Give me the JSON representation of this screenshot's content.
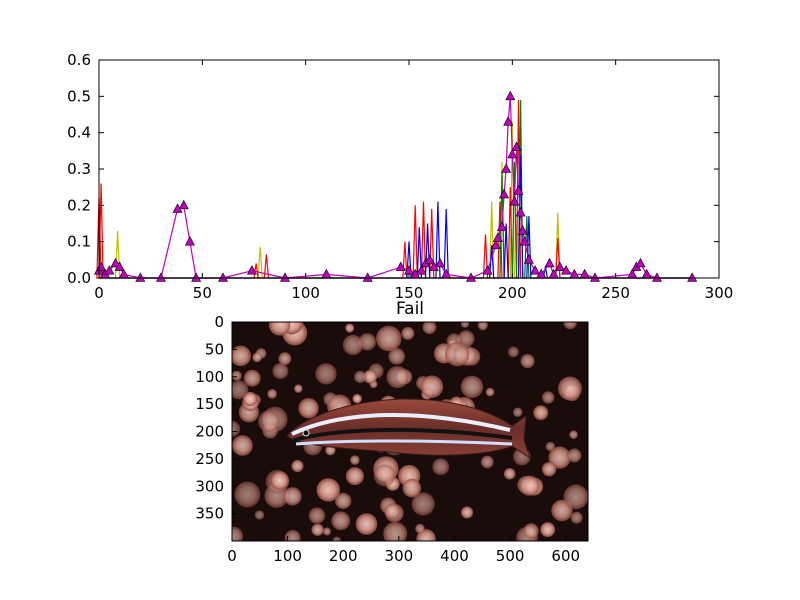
{
  "chart_data": [
    {
      "type": "line",
      "title": "",
      "xlabel": "",
      "ylabel": "",
      "xlim": [
        0,
        300
      ],
      "ylim": [
        0,
        0.6
      ],
      "xticks": [
        "0",
        "50",
        "100",
        "150",
        "200",
        "250",
        "300"
      ],
      "yticks": [
        "0.0",
        "0.1",
        "0.2",
        "0.3",
        "0.4",
        "0.5",
        "0.6"
      ],
      "grid": false,
      "legend": "none",
      "series": [
        {
          "color": "#bfbf00",
          "marker": "none",
          "peaks": [
            [
              9,
              0.13
            ],
            [
              78,
              0.085
            ],
            [
              190,
              0.21
            ],
            [
              195,
              0.32
            ],
            [
              200,
              0.43
            ],
            [
              222,
              0.18
            ]
          ]
        },
        {
          "color": "#ff0000",
          "marker": "none",
          "peaks": [
            [
              0,
              0.22
            ],
            [
              1,
              0.26
            ],
            [
              76,
              0.04
            ],
            [
              81,
              0.065
            ],
            [
              148,
              0.1
            ],
            [
              153,
              0.2
            ],
            [
              157,
              0.21
            ],
            [
              161,
              0.19
            ],
            [
              187,
              0.12
            ],
            [
              194,
              0.21
            ],
            [
              199,
              0.25
            ],
            [
              203,
              0.49
            ],
            [
              222,
              0.11
            ]
          ]
        },
        {
          "color": "#008000",
          "marker": "none",
          "peaks": [
            [
              195,
              0.29
            ],
            [
              201,
              0.32
            ],
            [
              204,
              0.49
            ],
            [
              207,
              0.17
            ]
          ]
        },
        {
          "color": "#0000ff",
          "marker": "none",
          "peaks": [
            [
              150,
              0.1
            ],
            [
              155,
              0.14
            ],
            [
              159,
              0.15
            ],
            [
              164,
              0.21
            ],
            [
              168,
              0.19
            ],
            [
              190,
              0.09
            ],
            [
              197,
              0.15
            ],
            [
              204,
              0.34
            ],
            [
              208,
              0.17
            ],
            [
              216,
              0.03
            ]
          ]
        },
        {
          "color": "#bf00bf",
          "marker": "triangle",
          "points": [
            [
              0,
              0.02
            ],
            [
              1,
              0.03
            ],
            [
              3,
              0.01
            ],
            [
              5,
              0.02
            ],
            [
              8,
              0.04
            ],
            [
              10,
              0.03
            ],
            [
              12,
              0.01
            ],
            [
              20,
              0.0
            ],
            [
              30,
              0.0
            ],
            [
              38,
              0.19
            ],
            [
              41,
              0.2
            ],
            [
              44,
              0.1
            ],
            [
              47,
              0.0
            ],
            [
              60,
              0.0
            ],
            [
              74,
              0.02
            ],
            [
              90,
              0.0
            ],
            [
              110,
              0.01
            ],
            [
              130,
              0.0
            ],
            [
              146,
              0.03
            ],
            [
              150,
              0.02
            ],
            [
              153,
              0.01
            ],
            [
              156,
              0.02
            ],
            [
              158,
              0.04
            ],
            [
              160,
              0.05
            ],
            [
              162,
              0.03
            ],
            [
              165,
              0.04
            ],
            [
              168,
              0.01
            ],
            [
              180,
              0.0
            ],
            [
              188,
              0.02
            ],
            [
              192,
              0.09
            ],
            [
              193,
              0.11
            ],
            [
              195,
              0.14
            ],
            [
              196,
              0.23
            ],
            [
              197,
              0.3
            ],
            [
              198,
              0.43
            ],
            [
              199,
              0.5
            ],
            [
              200,
              0.34
            ],
            [
              201,
              0.21
            ],
            [
              202,
              0.36
            ],
            [
              203,
              0.24
            ],
            [
              204,
              0.18
            ],
            [
              205,
              0.13
            ],
            [
              206,
              0.1
            ],
            [
              208,
              0.05
            ],
            [
              211,
              0.02
            ],
            [
              214,
              0.01
            ],
            [
              218,
              0.04
            ],
            [
              220,
              0.01
            ],
            [
              223,
              0.03
            ],
            [
              226,
              0.02
            ],
            [
              230,
              0.01
            ],
            [
              235,
              0.01
            ],
            [
              240,
              0.0
            ],
            [
              258,
              0.01
            ],
            [
              260,
              0.03
            ],
            [
              262,
              0.04
            ],
            [
              265,
              0.01
            ],
            [
              270,
              0.0
            ],
            [
              287,
              0.0
            ]
          ]
        }
      ]
    },
    {
      "type": "image",
      "title": "Fail",
      "xlim": [
        0,
        640
      ],
      "ylim": [
        400,
        0
      ],
      "xticks": [
        "0",
        "100",
        "200",
        "300",
        "400",
        "500",
        "600"
      ],
      "yticks": [
        "0",
        "50",
        "100",
        "150",
        "200",
        "250",
        "300",
        "350"
      ],
      "image_content": "photograph of a striped blenny fish swimming over pink branching coral"
    }
  ]
}
